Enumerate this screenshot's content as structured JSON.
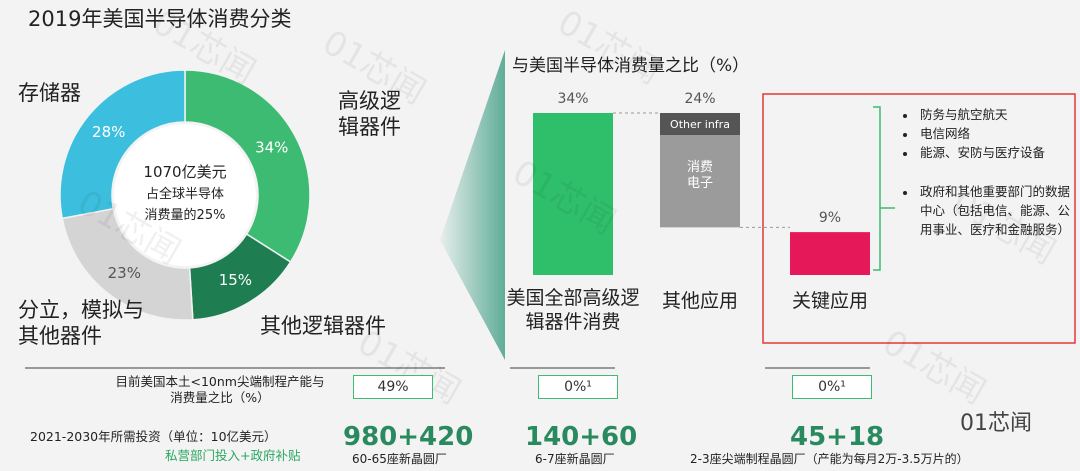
{
  "title": "2019年美国半导体消费分类",
  "watermark": "01芯闻",
  "chart_data": [
    {
      "type": "pie",
      "categories": [
        "高级逻辑器件",
        "其他逻辑器件",
        "分立，模拟与其他器件",
        "存储器"
      ],
      "values": [
        34,
        15,
        23,
        28
      ],
      "value_labels": [
        "34%",
        "15%",
        "23%",
        "28%"
      ],
      "colors": [
        "#3dbb73",
        "#1f7d52",
        "#d4d4d4",
        "#3cbfde"
      ],
      "center_text": [
        "1070亿美元",
        "占全球半导体",
        "消费量的25%"
      ]
    },
    {
      "type": "waterfall",
      "title": "与美国半导体消费量之比（%）",
      "categories": [
        "美国全部高级逻辑器件消费",
        "其他应用",
        "关键应用"
      ],
      "values": [
        34,
        24,
        9
      ],
      "value_labels": [
        "34%",
        "24%",
        "9%"
      ],
      "colors": [
        "#2fbf6a",
        "#9b9b9b",
        "#e5195a"
      ],
      "ylim": [
        0,
        34
      ],
      "segment_labels": [
        "Other infra",
        "消费电子"
      ],
      "bullets": [
        "防务与航空航天",
        "电信网络",
        "能源、安防与医疗设备",
        "政府和其他重要部门的数据中心（包括电信、能源、公用事业、医疗和金融服务）"
      ]
    }
  ],
  "table": {
    "rows": [
      {
        "label": "目前美国本土<10nm尖端制程产能与消费量之比（%）",
        "cells": [
          "49%",
          "0%¹",
          "0%¹"
        ]
      },
      {
        "label": "2021-2030年所需投资（单位：10亿美元）",
        "sublabel": "私营部门投入+政府补贴",
        "cells": [
          "980+420",
          "140+60",
          "45+18"
        ],
        "notes": [
          "60-65座新晶圆厂",
          "6-7座新晶圆厂",
          "2-3座尖端制程晶圆厂（产能为每月2万-3.5万片的）"
        ]
      }
    ]
  },
  "logo": "01芯闻"
}
